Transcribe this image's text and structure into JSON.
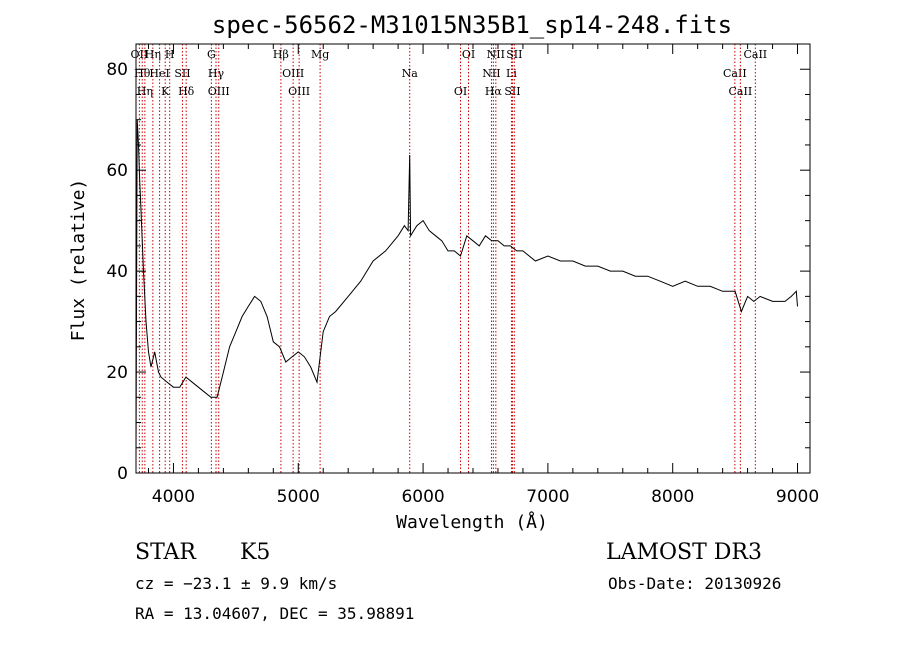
{
  "chart_data": {
    "type": "line",
    "title": "spec-56562-M31015N35B1_sp14-248.fits",
    "xlabel": "Wavelength (Å)",
    "ylabel": "Flux (relative)",
    "xlim": [
      3700,
      9100
    ],
    "ylim": [
      0,
      85
    ],
    "xticks": [
      4000,
      5000,
      6000,
      7000,
      8000,
      9000
    ],
    "yticks": [
      0,
      20,
      40,
      60,
      80
    ],
    "grid": false,
    "line_color": "#000000",
    "marker_color": "#cc0000",
    "series": [
      {
        "x": [
          3700,
          3710,
          3720,
          3730,
          3740,
          3760,
          3780,
          3800,
          3820,
          3850,
          3880,
          3900,
          3950,
          4000,
          4050,
          4100,
          4150,
          4200,
          4250,
          4300,
          4350,
          4400,
          4450,
          4500,
          4550,
          4600,
          4650,
          4700,
          4750,
          4800,
          4850,
          4900,
          4950,
          5000,
          5050,
          5100,
          5150,
          5200,
          5250,
          5300,
          5400,
          5500,
          5600,
          5700,
          5800,
          5850,
          5880,
          5893,
          5900,
          5950,
          6000,
          6050,
          6100,
          6150,
          6200,
          6250,
          6300,
          6350,
          6400,
          6450,
          6500,
          6550,
          6600,
          6650,
          6700,
          6750,
          6800,
          6900,
          7000,
          7100,
          7200,
          7300,
          7400,
          7500,
          7600,
          7700,
          7800,
          7900,
          8000,
          8100,
          8200,
          8300,
          8400,
          8500,
          8550,
          8600,
          8650,
          8700,
          8800,
          8900,
          8950,
          8990,
          9000
        ],
        "y": [
          3,
          70,
          65,
          58,
          52,
          40,
          30,
          24,
          21,
          24,
          20,
          19,
          18,
          17,
          17,
          19,
          18,
          17,
          16,
          15,
          15,
          20,
          25,
          28,
          31,
          33,
          35,
          34,
          31,
          26,
          25,
          22,
          23,
          24,
          23,
          21,
          18,
          28,
          31,
          32,
          35,
          38,
          42,
          44,
          47,
          49,
          48,
          63,
          47,
          49,
          50,
          48,
          47,
          46,
          44,
          44,
          43,
          47,
          46,
          45,
          47,
          46,
          46,
          45,
          45,
          44,
          44,
          42,
          43,
          42,
          42,
          41,
          41,
          40,
          40,
          39,
          39,
          38,
          37,
          38,
          37,
          37,
          36,
          36,
          32,
          35,
          34,
          35,
          34,
          34,
          35,
          36,
          33
        ]
      }
    ],
    "line_markers": [
      {
        "wl": 3727,
        "labels": [
          "OII"
        ]
      },
      {
        "wl": 3750,
        "labels": [
          "Hθ"
        ]
      },
      {
        "wl": 3771,
        "labels": [
          "Hη"
        ]
      },
      {
        "wl": 3835,
        "labels": [
          "Hη"
        ]
      },
      {
        "wl": 3889,
        "labels": [
          "HeI"
        ]
      },
      {
        "wl": 3934,
        "labels": [
          "K"
        ]
      },
      {
        "wl": 3970,
        "labels": [
          "H"
        ]
      },
      {
        "wl": 4072,
        "labels": [
          "SII"
        ]
      },
      {
        "wl": 4102,
        "labels": [
          "Hδ"
        ]
      },
      {
        "wl": 4304,
        "labels": [
          "G"
        ]
      },
      {
        "wl": 4341,
        "labels": [
          "Hγ"
        ]
      },
      {
        "wl": 4363,
        "labels": [
          "OIII"
        ]
      },
      {
        "wl": 4861,
        "labels": [
          "Hβ"
        ]
      },
      {
        "wl": 4959,
        "labels": [
          "OIII"
        ]
      },
      {
        "wl": 5007,
        "labels": [
          "OIII"
        ]
      },
      {
        "wl": 5175,
        "labels": [
          "Mg"
        ]
      },
      {
        "wl": 5893,
        "labels": [
          "Na"
        ]
      },
      {
        "wl": 6300,
        "labels": [
          "OI"
        ]
      },
      {
        "wl": 6364,
        "labels": [
          "OI"
        ]
      },
      {
        "wl": 6548,
        "labels": [
          "NII"
        ]
      },
      {
        "wl": 6563,
        "labels": [
          "Hα"
        ]
      },
      {
        "wl": 6583,
        "labels": [
          "NII"
        ]
      },
      {
        "wl": 6708,
        "labels": [
          "Li"
        ]
      },
      {
        "wl": 6716,
        "labels": [
          "SII"
        ]
      },
      {
        "wl": 6731,
        "labels": [
          "SII"
        ]
      },
      {
        "wl": 8498,
        "labels": [
          "CaII"
        ]
      },
      {
        "wl": 8542,
        "labels": [
          "CaII"
        ]
      },
      {
        "wl": 8662,
        "labels": [
          "CaII"
        ]
      }
    ]
  },
  "info": {
    "class_label": "STAR",
    "subclass": "K5",
    "survey": "LAMOST DR3",
    "redshift": "cz = −23.1 ± 9.9 km/s",
    "obs_date": "Obs-Date: 20130926",
    "coords": "RA =  13.04607, DEC =  35.98891"
  }
}
